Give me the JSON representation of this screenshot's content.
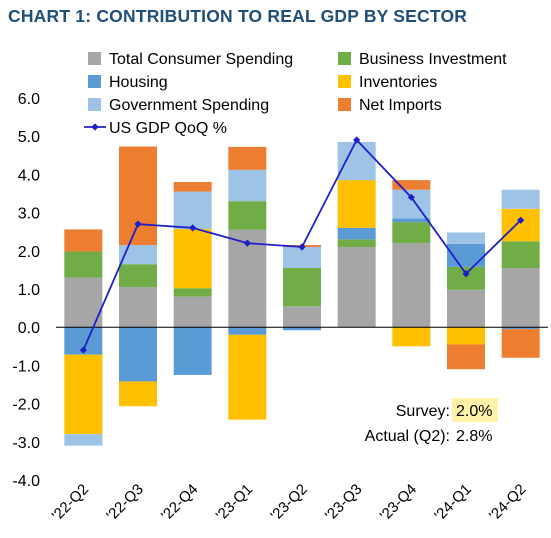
{
  "chart_data": {
    "type": "bar",
    "title": "CHART 1: CONTRIBUTION TO REAL GDP BY SECTOR",
    "categories": [
      "'22-Q2",
      "'22-Q3",
      "'22-Q4",
      "'23-Q1",
      "'23-Q2",
      "'23-Q3",
      "'23-Q4",
      "'24-Q1",
      "'24-Q2"
    ],
    "ylim": [
      -4.0,
      6.0
    ],
    "yticks": [
      "6.0",
      "5.0",
      "4.0",
      "3.0",
      "2.0",
      "1.0",
      "0.0",
      "-1.0",
      "-2.0",
      "-3.0",
      "-4.0"
    ],
    "series": [
      {
        "name": "Total Consumer Spending",
        "color": "#a6a6a6",
        "values": [
          1.3,
          1.05,
          0.8,
          2.55,
          0.55,
          2.1,
          2.2,
          0.98,
          1.55
        ]
      },
      {
        "name": "Business Investment",
        "color": "#70ad47",
        "values": [
          0.68,
          0.6,
          0.22,
          0.75,
          1.0,
          0.2,
          0.55,
          0.6,
          0.7
        ]
      },
      {
        "name": "Housing",
        "color": "#5b9bd5",
        "values": [
          -0.72,
          -1.42,
          -1.25,
          -0.2,
          -0.08,
          0.3,
          0.1,
          0.6,
          -0.05
        ]
      },
      {
        "name": "Inventories",
        "color": "#ffc000",
        "values": [
          -2.08,
          -0.65,
          1.55,
          -2.22,
          0.0,
          1.25,
          -0.5,
          -0.45,
          0.85
        ]
      },
      {
        "name": "Government Spending",
        "color": "#9dc3e6",
        "values": [
          -0.3,
          0.5,
          0.98,
          0.82,
          0.55,
          1.0,
          0.75,
          0.3,
          0.5
        ]
      },
      {
        "name": "Net Imports",
        "color": "#ed7d31",
        "values": [
          0.58,
          2.58,
          0.25,
          0.6,
          0.05,
          0.0,
          0.25,
          -0.65,
          -0.75
        ]
      }
    ],
    "line": {
      "name": "US GDP QoQ %",
      "color": "#1f1fc9",
      "values": [
        -0.6,
        2.7,
        2.6,
        2.2,
        2.1,
        4.9,
        3.4,
        1.4,
        2.8
      ]
    },
    "annotations": {
      "survey_label": "Survey:",
      "survey_value": "2.0%",
      "actual_label": "Actual (Q2):",
      "actual_value": "2.8%"
    },
    "grid": false,
    "legend_position": "top"
  }
}
